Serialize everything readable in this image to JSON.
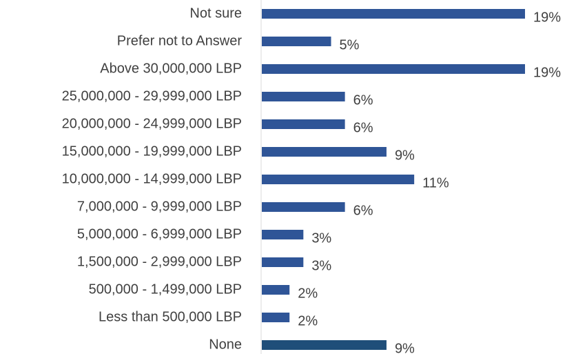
{
  "chart_data": {
    "type": "bar",
    "orientation": "horizontal",
    "categories": [
      "Not sure",
      "Prefer not to Answer",
      "Above 30,000,000 LBP",
      "25,000,000 - 29,999,000 LBP",
      "20,000,000 - 24,999,000 LBP",
      "15,000,000 - 19,999,000 LBP",
      "10,000,000 - 14,999,000 LBP",
      "7,000,000 - 9,999,000 LBP",
      "5,000,000 - 6,999,000 LBP",
      "1,500,000 - 2,999,000 LBP",
      "500,000 - 1,499,000 LBP",
      "Less than 500,000 LBP",
      "None"
    ],
    "values": [
      19,
      5,
      19,
      6,
      6,
      9,
      11,
      6,
      3,
      3,
      2,
      2,
      9
    ],
    "value_labels": [
      "19%",
      "5%",
      "19%",
      "6%",
      "6%",
      "9%",
      "11%",
      "6%",
      "3%",
      "3%",
      "2%",
      "2%",
      "9%"
    ],
    "colors": [
      "#2f5597",
      "#2f5597",
      "#2f5597",
      "#2f5597",
      "#2f5597",
      "#2f5597",
      "#2f5597",
      "#2f5597",
      "#2f5597",
      "#2f5597",
      "#2f5597",
      "#2f5597",
      "#1f4e79"
    ]
  }
}
